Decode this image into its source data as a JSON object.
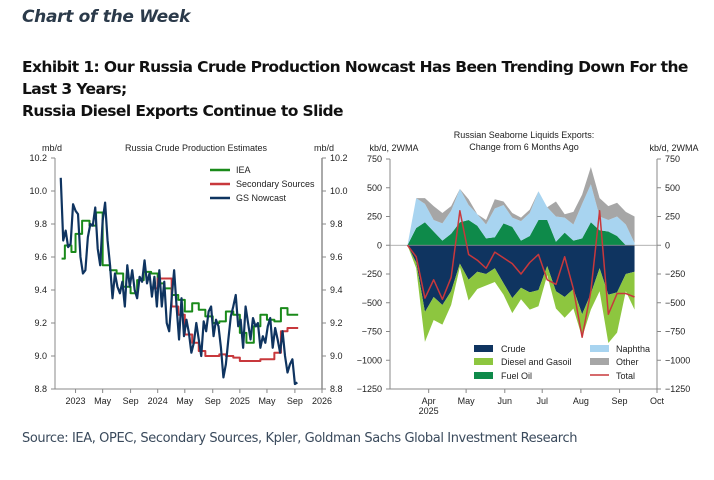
{
  "header": {
    "kicker": "Chart of the Week",
    "title_line1": "Exhibit 1: Our Russia Crude Production Nowcast Has Been Trending Down For the Last 3 Years;",
    "title_line2": "Russia Diesel Exports Continue to Slide"
  },
  "footer": {
    "source": "Source: IEA, OPEC, Secondary Sources, Kpler, Goldman Sachs Global Investment Research"
  },
  "chart_data": [
    {
      "type": "line",
      "title": "Russia Crude Production Estimates",
      "ylabel_left": "mb/d",
      "ylabel_right": "mb/d",
      "ylim": [
        8.8,
        10.2
      ],
      "yticks": [
        "10.2",
        "10.0",
        "9.8",
        "9.6",
        "9.4",
        "9.2",
        "9.0",
        "8.8"
      ],
      "xlim": [
        "2022-10",
        "2026-01"
      ],
      "xticks": [
        "2023",
        "May",
        "Sep",
        "2024",
        "May",
        "Sep",
        "2025",
        "May",
        "Sep",
        "2026"
      ],
      "legend_position": "top-right",
      "series": [
        {
          "name": "IEA",
          "color": "#1a8a1a",
          "x": [
            2022.83,
            2022.87,
            2022.95,
            2023.0,
            2023.08,
            2023.17,
            2023.25,
            2023.33,
            2023.42,
            2023.5,
            2023.58,
            2023.67,
            2023.75,
            2023.83,
            2023.92,
            2024.0,
            2024.08,
            2024.17,
            2024.25,
            2024.33,
            2024.42,
            2024.5,
            2024.58,
            2024.67,
            2024.75,
            2024.83,
            2024.92,
            2025.0,
            2025.08,
            2025.17,
            2025.25,
            2025.33,
            2025.42,
            2025.5,
            2025.58,
            2025.67
          ],
          "values": [
            9.59,
            9.67,
            9.63,
            9.74,
            9.82,
            9.79,
            9.87,
            9.55,
            9.52,
            9.5,
            9.42,
            9.38,
            9.46,
            9.51,
            9.5,
            9.44,
            9.41,
            9.37,
            9.34,
            9.27,
            9.32,
            9.28,
            9.24,
            9.2,
            9.21,
            9.27,
            9.25,
            9.14,
            9.08,
            9.18,
            9.25,
            9.22,
            9.21,
            9.29,
            9.25,
            9.25
          ]
        },
        {
          "name": "Secondary Sources",
          "color": "#c8383c",
          "x": [
            2023.92,
            2024.0,
            2024.08,
            2024.17,
            2024.25,
            2024.33,
            2024.42,
            2024.5,
            2024.58,
            2024.67,
            2024.75,
            2024.83,
            2024.92,
            2025.0,
            2025.08,
            2025.17,
            2025.25,
            2025.33,
            2025.42,
            2025.5,
            2025.58,
            2025.67
          ],
          "values": [
            9.41,
            9.47,
            9.47,
            9.3,
            9.25,
            9.13,
            9.08,
            9.03,
            9.0,
            9.0,
            9.01,
            9.0,
            8.99,
            8.97,
            8.97,
            8.97,
            8.98,
            8.98,
            9.02,
            9.15,
            9.17,
            9.17
          ]
        },
        {
          "name": "GS Nowcast",
          "color": "#0f3460",
          "x": [
            2022.82,
            2022.85,
            2022.88,
            2022.91,
            2022.94,
            2022.97,
            2023.0,
            2023.03,
            2023.06,
            2023.09,
            2023.12,
            2023.15,
            2023.18,
            2023.21,
            2023.24,
            2023.27,
            2023.3,
            2023.33,
            2023.36,
            2023.39,
            2023.42,
            2023.45,
            2023.48,
            2023.51,
            2023.54,
            2023.57,
            2023.6,
            2023.63,
            2023.66,
            2023.69,
            2023.72,
            2023.75,
            2023.78,
            2023.81,
            2023.84,
            2023.87,
            2023.9,
            2023.93,
            2023.96,
            2023.99,
            2024.02,
            2024.05,
            2024.08,
            2024.11,
            2024.14,
            2024.17,
            2024.2,
            2024.23,
            2024.26,
            2024.29,
            2024.32,
            2024.35,
            2024.38,
            2024.41,
            2024.44,
            2024.47,
            2024.5,
            2024.53,
            2024.56,
            2024.59,
            2024.62,
            2024.65,
            2024.68,
            2024.71,
            2024.74,
            2024.77,
            2024.8,
            2024.83,
            2024.86,
            2024.89,
            2024.92,
            2024.95,
            2024.98,
            2025.01,
            2025.04,
            2025.07,
            2025.1,
            2025.13,
            2025.16,
            2025.19,
            2025.22,
            2025.25,
            2025.28,
            2025.31,
            2025.34,
            2025.37,
            2025.4,
            2025.43,
            2025.46,
            2025.49,
            2025.52,
            2025.55,
            2025.58,
            2025.61,
            2025.64,
            2025.67,
            2025.7
          ],
          "values": [
            10.08,
            9.7,
            9.76,
            9.66,
            9.68,
            9.92,
            9.88,
            9.86,
            9.6,
            9.5,
            9.52,
            9.72,
            9.8,
            9.79,
            9.9,
            9.65,
            9.55,
            9.82,
            9.93,
            9.7,
            9.55,
            9.35,
            9.5,
            9.42,
            9.38,
            9.45,
            9.3,
            9.55,
            9.42,
            9.52,
            9.4,
            9.35,
            9.48,
            9.45,
            9.58,
            9.44,
            9.5,
            9.36,
            9.48,
            9.3,
            9.52,
            9.3,
            9.45,
            9.2,
            9.15,
            9.35,
            9.52,
            9.3,
            9.1,
            9.35,
            9.12,
            9.22,
            9.14,
            9.02,
            9.08,
            9.2,
            9.1,
            9.0,
            9.21,
            9.15,
            9.27,
            9.3,
            9.12,
            9.22,
            9.18,
            9.05,
            8.87,
            8.95,
            9.1,
            9.24,
            9.3,
            9.37,
            9.18,
            9.22,
            9.05,
            9.3,
            9.2,
            9.1,
            9.23,
            9.18,
            9.2,
            9.05,
            9.12,
            9.08,
            9.18,
            9.23,
            9.05,
            9.17,
            9.1,
            9.02,
            9.15,
            9.0,
            8.9,
            8.95,
            8.98,
            8.83,
            8.84
          ]
        }
      ]
    },
    {
      "type": "area",
      "title_line1": "Russian Seaborne Liquids Exports:",
      "title_line2": "Change from 6 Months Ago",
      "ylabel_left": "kb/d, 2WMA",
      "ylabel_right": "kb/d, 2WMA",
      "ylim": [
        -1250,
        750
      ],
      "yticks": [
        "750",
        "500",
        "250",
        "0",
        "-250",
        "-500",
        "-750",
        "-1000",
        "-1250"
      ],
      "xticks": [
        "Apr",
        "May",
        "Jun",
        "Jul",
        "Aug",
        "Sep",
        "Oct"
      ],
      "xtick_sublabel": "2025",
      "legend_position": "bottom-center",
      "x_weeks": [
        "2025-03-15",
        "2025-03-22",
        "2025-03-29",
        "2025-04-05",
        "2025-04-12",
        "2025-04-19",
        "2025-04-26",
        "2025-05-03",
        "2025-05-10",
        "2025-05-17",
        "2025-05-24",
        "2025-05-31",
        "2025-06-07",
        "2025-06-14",
        "2025-06-21",
        "2025-06-28",
        "2025-07-05",
        "2025-07-12",
        "2025-07-19",
        "2025-07-26",
        "2025-08-02",
        "2025-08-09",
        "2025-08-16",
        "2025-08-23",
        "2025-08-30",
        "2025-09-06",
        "2025-09-13"
      ],
      "series": [
        {
          "name": "Crude",
          "color": "#0f3460",
          "values": [
            0,
            -150,
            -580,
            -450,
            -520,
            -400,
            -160,
            -300,
            -230,
            -250,
            -200,
            -330,
            -460,
            -370,
            -410,
            -390,
            -180,
            -400,
            -450,
            -380,
            -600,
            -420,
            -200,
            -430,
            -410,
            -250,
            -230
          ]
        },
        {
          "name": "Diesel and Gasoil",
          "color": "#8dc63f",
          "values": [
            0,
            -50,
            -260,
            -200,
            -170,
            -120,
            -30,
            -180,
            -150,
            -100,
            -120,
            -100,
            -130,
            -100,
            -150,
            -140,
            -80,
            -150,
            -180,
            -170,
            -200,
            -140,
            -200,
            -420,
            -350,
            -150,
            -330
          ]
        },
        {
          "name": "Fuel Oil",
          "color": "#0e8a4a",
          "values": [
            0,
            150,
            200,
            120,
            40,
            100,
            200,
            220,
            170,
            60,
            70,
            190,
            160,
            40,
            80,
            220,
            220,
            30,
            110,
            40,
            60,
            200,
            130,
            120,
            80,
            0,
            0
          ]
        },
        {
          "name": "Naphtha",
          "color": "#a8d4f0",
          "values": [
            0,
            260,
            160,
            100,
            150,
            200,
            290,
            130,
            100,
            120,
            250,
            160,
            80,
            170,
            200,
            250,
            110,
            220,
            130,
            140,
            300,
            330,
            120,
            100,
            170,
            180,
            20
          ]
        },
        {
          "name": "Other",
          "color": "#a6a6a6",
          "values": [
            0,
            0,
            50,
            120,
            90,
            40,
            0,
            50,
            0,
            40,
            80,
            30,
            40,
            30,
            30,
            0,
            0,
            130,
            30,
            110,
            80,
            150,
            160,
            120,
            120,
            110,
            230
          ]
        },
        {
          "name": "Total",
          "color": "#c8383c",
          "values": [
            0,
            -100,
            -460,
            -300,
            -470,
            -280,
            300,
            -80,
            -130,
            -200,
            -60,
            -110,
            -160,
            -250,
            -150,
            -80,
            -300,
            -340,
            -100,
            -380,
            -800,
            -400,
            300,
            -600,
            -420,
            -420,
            -450
          ]
        }
      ]
    }
  ]
}
